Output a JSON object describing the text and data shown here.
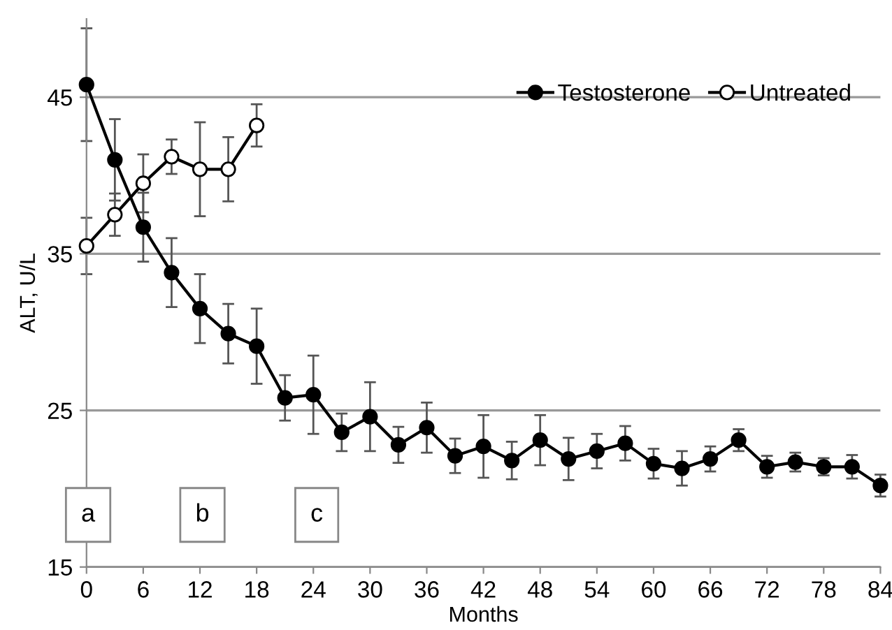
{
  "chart_data": {
    "type": "line",
    "xlabel": "Months",
    "ylabel": "ALT, U/L",
    "x": [
      0,
      3,
      6,
      9,
      12,
      15,
      18,
      21,
      24,
      27,
      30,
      33,
      36,
      39,
      42,
      45,
      48,
      51,
      54,
      57,
      60,
      63,
      66,
      69,
      72,
      75,
      78,
      81,
      84
    ],
    "series": [
      {
        "name": "Testosterone",
        "color": "#000000",
        "marker": "circle",
        "values": [
          45.8,
          41.0,
          36.7,
          33.8,
          31.5,
          29.9,
          29.1,
          25.8,
          26.0,
          23.6,
          24.6,
          22.8,
          23.9,
          22.1,
          22.7,
          21.8,
          23.1,
          21.9,
          22.4,
          22.9,
          21.6,
          21.3,
          21.9,
          23.1,
          21.4,
          21.7,
          21.4,
          21.4,
          20.2
        ],
        "errors": [
          3.6,
          2.6,
          2.2,
          2.2,
          2.2,
          1.9,
          2.4,
          1.45,
          2.5,
          1.2,
          2.2,
          1.15,
          1.6,
          1.1,
          2.0,
          1.2,
          1.6,
          1.35,
          1.1,
          1.1,
          0.95,
          1.1,
          0.8,
          0.7,
          0.7,
          0.6,
          0.55,
          0.75,
          0.7
        ]
      },
      {
        "name": "Untreated",
        "color": "#000000",
        "marker": "circle_open",
        "x": [
          0,
          3,
          6,
          9,
          12,
          15,
          18
        ],
        "values": [
          35.5,
          37.5,
          39.5,
          41.2,
          40.4,
          40.4,
          43.2
        ],
        "errors": [
          1.8,
          1.35,
          1.85,
          1.1,
          3.0,
          2.05,
          1.35
        ]
      }
    ],
    "xlim": [
      0,
      84
    ],
    "xticks": [
      0,
      6,
      12,
      18,
      24,
      30,
      36,
      42,
      48,
      54,
      60,
      66,
      72,
      78,
      84
    ],
    "ylim": [
      15,
      50
    ],
    "yticks": [
      15,
      25,
      35,
      45
    ],
    "grid": "y",
    "legend": "top right",
    "line_style": "solid",
    "annotations": [
      "a",
      "b",
      "c"
    ]
  }
}
